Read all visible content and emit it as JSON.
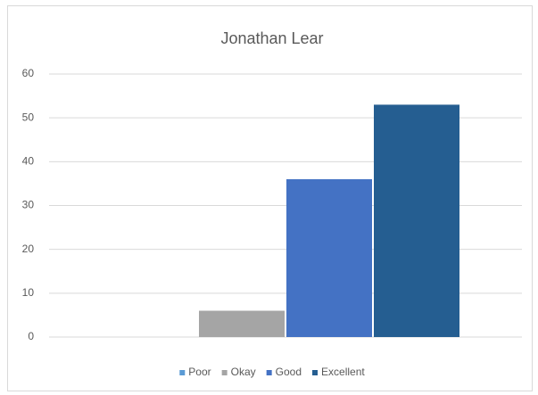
{
  "chart_data": {
    "type": "bar",
    "title": "Jonathan Lear",
    "categories": [
      null
    ],
    "series": [
      {
        "name": "Poor",
        "color": "#5b9bd5",
        "values": [
          0
        ]
      },
      {
        "name": "Okay",
        "color": "#a5a5a5",
        "values": [
          6
        ]
      },
      {
        "name": "Good",
        "color": "#4472c4",
        "values": [
          36
        ]
      },
      {
        "name": "Excellent",
        "color": "#255e91",
        "values": [
          53
        ]
      }
    ],
    "ylim": [
      0,
      60
    ],
    "yticks": [
      0,
      10,
      20,
      30,
      40,
      50,
      60
    ],
    "grid": true,
    "legend": "bottom"
  }
}
